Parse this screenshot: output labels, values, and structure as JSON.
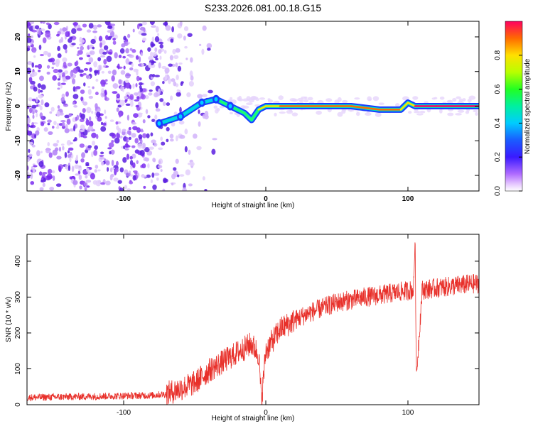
{
  "figure_title": "S233.2026.081.00.18.G15",
  "colors": {
    "snr_line": "#e8302a",
    "speckle": "#8a3ff0",
    "speckle_light": "#c9a8f7",
    "axis": "#000000"
  },
  "chart_data": [
    {
      "type": "heatmap",
      "title": "",
      "xlabel": "Height of straight line (km)",
      "ylabel": "Frequency (Hz)",
      "xlim": [
        -168,
        150
      ],
      "ylim": [
        -24.5,
        24.5
      ],
      "xticks": [
        -100,
        0,
        100
      ],
      "xtick_labels": [
        "-100",
        "0",
        "100"
      ],
      "yticks": [
        -20,
        -10,
        0,
        10,
        20
      ],
      "ytick_labels": [
        "-20",
        "-10",
        "0",
        "10",
        "20"
      ],
      "colorbar": {
        "label": "Normalized spectral amplitude",
        "range": [
          0,
          1
        ],
        "ticks": [
          0.0,
          0.2,
          0.4,
          0.6,
          0.8
        ],
        "tick_labels": [
          "0.0",
          "0.2",
          "0.4",
          "0.6",
          "0.8"
        ]
      },
      "signal_track": {
        "description_heights_km": [
          -75,
          -60,
          -45,
          -35,
          -25,
          -15,
          -10,
          -5,
          0,
          10,
          30,
          60,
          80,
          95,
          100,
          105,
          120,
          150
        ],
        "frequency_hz": [
          -5,
          -3,
          1,
          2,
          0,
          -2,
          -4,
          -1,
          0,
          0,
          0,
          0,
          -1,
          -1,
          1,
          0,
          0,
          0
        ],
        "amplitude": [
          0.3,
          0.35,
          0.4,
          0.5,
          0.6,
          0.7,
          0.5,
          0.8,
          0.7,
          0.85,
          0.9,
          0.9,
          0.95,
          0.95,
          0.6,
          1.0,
          1.0,
          1.0
        ]
      }
    },
    {
      "type": "line",
      "title": "",
      "xlabel": "Height of straight line (km)",
      "ylabel": "SNR (10 * v/v)",
      "xlim": [
        -168,
        150
      ],
      "ylim": [
        0,
        475
      ],
      "xticks": [
        -100,
        0,
        100
      ],
      "xtick_labels": [
        "-100",
        "0",
        "100"
      ],
      "yticks": [
        0,
        100,
        200,
        300,
        400
      ],
      "ytick_labels": [
        "0",
        "100",
        "200",
        "300",
        "400"
      ],
      "series": [
        {
          "name": "SNR",
          "x": [
            -168,
            -140,
            -110,
            -80,
            -70,
            -60,
            -50,
            -40,
            -30,
            -20,
            -10,
            -5,
            -3,
            0,
            5,
            10,
            20,
            30,
            40,
            50,
            60,
            70,
            80,
            90,
            100,
            104,
            105,
            106,
            110,
            120,
            130,
            140,
            150
          ],
          "values": [
            20,
            22,
            24,
            26,
            30,
            45,
            60,
            95,
            120,
            145,
            170,
            140,
            10,
            150,
            180,
            210,
            235,
            255,
            270,
            285,
            292,
            300,
            305,
            312,
            318,
            320,
            470,
            80,
            320,
            325,
            330,
            335,
            338
          ]
        }
      ]
    }
  ]
}
